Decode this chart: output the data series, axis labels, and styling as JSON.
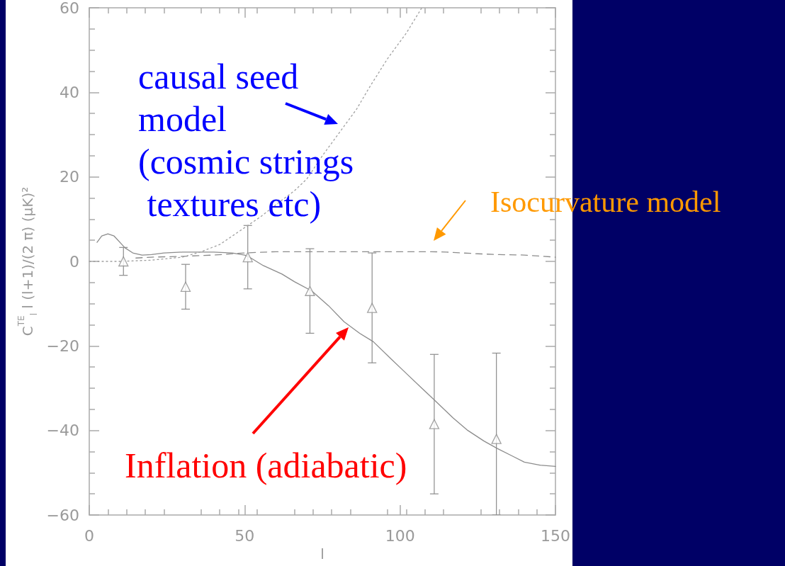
{
  "chart_data": {
    "type": "line",
    "xlabel": "l",
    "ylabel": "C$^{TE}$$_{l}$ l (l+1)/(2 π) (μK)²",
    "xlim": [
      0,
      150
    ],
    "xticks": [
      0,
      50,
      100,
      150
    ],
    "ylim": [
      -60,
      60
    ],
    "yticks": [
      -60,
      -40,
      -20,
      0,
      20,
      40,
      60
    ],
    "grid": false,
    "series": [
      {
        "color": "#8c8c8c",
        "line_style": "solid",
        "marker": "none",
        "x": [
          2.5,
          4,
          6,
          8,
          11.5,
          14,
          17,
          20,
          24,
          30,
          40,
          46,
          50,
          52,
          56,
          62,
          66,
          71.6,
          77,
          82,
          87,
          91.4,
          97,
          102,
          107,
          111.6,
          117,
          121.8,
          127,
          131.4,
          136,
          140,
          145,
          150
        ],
        "values": [
          4.5,
          6,
          6.5,
          6,
          3.2,
          2,
          1.5,
          1.6,
          2,
          2.2,
          2.2,
          2,
          1.5,
          0.8,
          -1,
          -3,
          -4.8,
          -7,
          -10.5,
          -14.3,
          -17,
          -19,
          -23,
          -26.5,
          -30,
          -33.2,
          -37,
          -40,
          -42.5,
          -44.3,
          -46,
          -47.5,
          -48.2,
          -48.5
        ]
      },
      {
        "color": "#8c8c8c",
        "line_style": "dashed",
        "marker": "none",
        "x": [
          15,
          20,
          30,
          40,
          50,
          60,
          70,
          80,
          90,
          100,
          110,
          115,
          120,
          125,
          132,
          140,
          150
        ],
        "values": [
          0.8,
          1,
          1.2,
          1.5,
          2,
          2.3,
          2.3,
          2.3,
          2.3,
          2.3,
          2.3,
          2.2,
          2,
          1.8,
          1.6,
          1.5,
          1
        ]
      },
      {
        "color": "#a0a0a0",
        "line_style": "dotted",
        "marker": "none",
        "x": [
          0,
          10,
          20,
          30,
          36,
          42,
          47,
          55,
          62,
          66,
          70,
          75,
          81,
          86,
          90,
          96,
          102,
          107
        ],
        "values": [
          0,
          0,
          0.3,
          1,
          2.3,
          4,
          6.5,
          10.5,
          14.5,
          16.7,
          19.5,
          25,
          31,
          36,
          41,
          48,
          54,
          60
        ]
      },
      {
        "type": "scatter",
        "color": "#8c8c8c",
        "marker": "triangle",
        "x": [
          11,
          31,
          51,
          71,
          91,
          111,
          131
        ],
        "values": [
          0,
          -6,
          1,
          -7,
          -11,
          -38.5,
          -42
        ],
        "errors": [
          3.3,
          5.3,
          7.5,
          10,
          13,
          16.5,
          [
            -60,
            -21.7
          ]
        ]
      }
    ],
    "annotations": [
      "causal seed\nmodel\n(cosmic strings\n textures etc)",
      "Isocurvature model",
      "Inflation (adiabatic)"
    ]
  }
}
